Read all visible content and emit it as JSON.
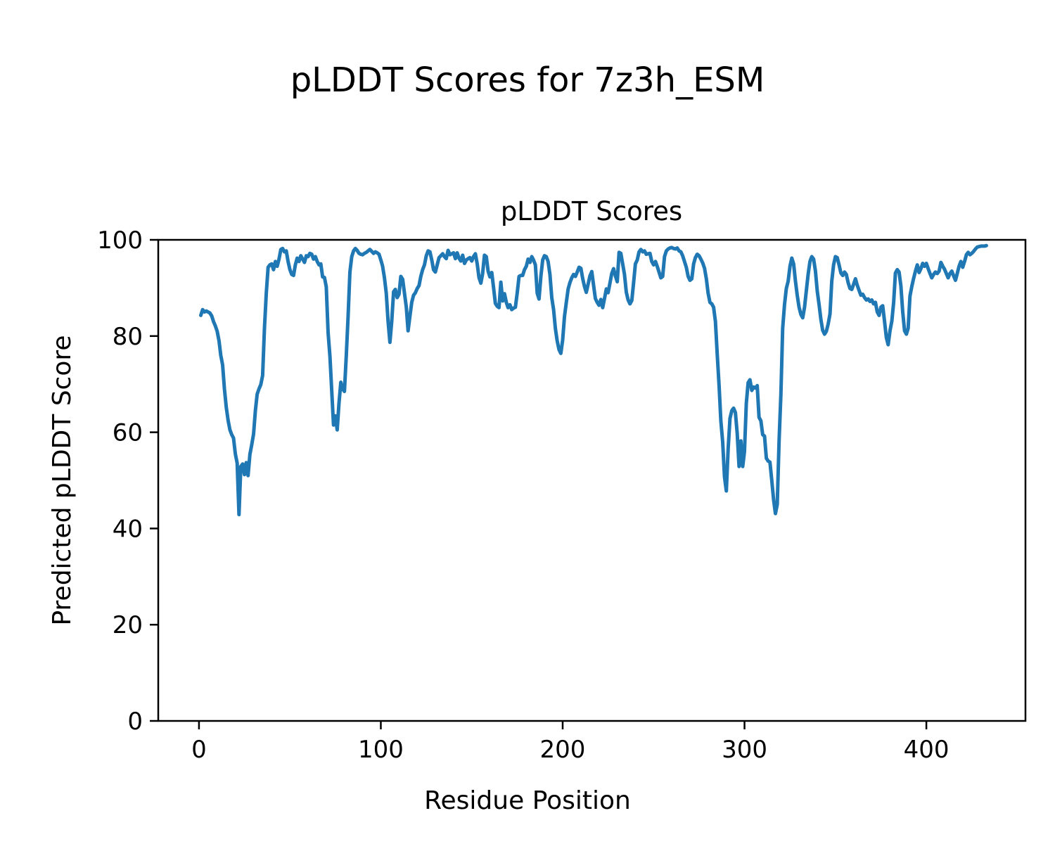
{
  "figure": {
    "background": "#ffffff",
    "suptitle": "pLDDT Scores for 7z3h_ESM"
  },
  "chart_data": {
    "type": "line",
    "title": "pLDDT Scores",
    "suptitle": "pLDDT Scores for 7z3h_ESM",
    "xlabel": "Residue Position",
    "ylabel": "Predicted pLDDT Score",
    "xlim": [
      -22.4,
      454.5
    ],
    "ylim": [
      0,
      100
    ],
    "xticks": [
      0,
      100,
      200,
      300,
      400
    ],
    "yticks": [
      0,
      20,
      40,
      60,
      80,
      100
    ],
    "grid": false,
    "legend": "none",
    "line_color": "#1f77b4",
    "line_width": 5,
    "axis_color": "#000000",
    "series": [
      {
        "name": "pLDDT",
        "x_start": 1,
        "x_step": 1,
        "values": [
          84.3,
          85.5,
          85,
          85.2,
          85,
          84.8,
          84.2,
          83,
          82.1,
          81,
          79,
          76,
          74,
          69,
          65.2,
          62.5,
          60.5,
          59.5,
          58.8,
          55.5,
          53.6,
          42.9,
          52.9,
          53.4,
          51.2,
          53.7,
          51,
          55.4,
          57.4,
          59.6,
          64.5,
          67.9,
          69,
          69.9,
          71.8,
          81.6,
          88.9,
          94.3,
          94.8,
          95,
          93.8,
          95.5,
          94.5,
          96,
          98,
          98.2,
          97.5,
          97.7,
          95.5,
          93.8,
          92.8,
          92.6,
          94.8,
          96.2,
          95.5,
          96.7,
          96,
          95.3,
          96.7,
          96.5,
          97.2,
          97,
          96,
          96.5,
          95.5,
          94.8,
          95,
          92.3,
          92.2,
          90.2,
          80.7,
          75.8,
          68.5,
          61.5,
          63.4,
          60.5,
          66.1,
          70.4,
          69,
          68.5,
          75.8,
          84,
          93.3,
          96.5,
          97.7,
          98.2,
          97.8,
          97.2,
          97,
          96.9,
          97.2,
          97.4,
          97.7,
          98,
          97.6,
          97.2,
          97.5,
          97.3,
          97,
          95.8,
          94.5,
          92.1,
          88.9,
          83,
          78.7,
          83.1,
          89.2,
          89.7,
          88,
          88.7,
          92.4,
          91.8,
          88.9,
          86,
          81.1,
          84.1,
          87,
          88.5,
          89,
          89.9,
          90.5,
          92.4,
          93.8,
          94.8,
          96.7,
          97.7,
          97.5,
          95.8,
          93.8,
          93.3,
          94.8,
          96.3,
          96.7,
          97.1,
          96.5,
          96.1,
          97.8,
          96.9,
          97.1,
          97.3,
          96.1,
          97.3,
          96.2,
          95.6,
          96.8,
          95.1,
          95.8,
          96.1,
          96.3,
          95.6,
          96.5,
          97.1,
          95,
          92.1,
          91,
          93,
          96.8,
          96.5,
          93.5,
          92.3,
          93.2,
          90,
          86.8,
          86.2,
          85.9,
          91.2,
          87.3,
          88.8,
          87,
          85.9,
          86.5,
          85.5,
          85.8,
          86,
          89,
          92.4,
          92.6,
          92.6,
          93.8,
          94.5,
          96,
          95.3,
          96.5,
          95.8,
          94.8,
          88.9,
          87.7,
          92.4,
          95.8,
          96.7,
          96.5,
          95.5,
          92.8,
          88,
          85.5,
          81.5,
          79,
          77.2,
          76.4,
          79.2,
          84.1,
          87,
          89.8,
          91.1,
          92.1,
          92.8,
          92.4,
          93.3,
          94.3,
          94.1,
          92,
          90.3,
          89.1,
          90.8,
          92.5,
          93.4,
          90.5,
          87.8,
          87,
          86.4,
          87.6,
          85.9,
          87.8,
          89.8,
          89,
          91,
          93,
          94,
          92.5,
          91.3,
          97.4,
          97.2,
          95,
          92.8,
          89.1,
          87.5,
          86.7,
          87.4,
          91,
          95,
          95.8,
          97.5,
          98,
          97.5,
          97.7,
          97,
          97.1,
          97.2,
          95.5,
          94.8,
          95.5,
          94.5,
          93.3,
          92.1,
          92.4,
          96.5,
          97.7,
          98.1,
          98.3,
          98.4,
          98.2,
          98.1,
          98.3,
          97.7,
          97.5,
          96.7,
          95.5,
          94.3,
          92.4,
          91.6,
          91.9,
          95,
          96.3,
          97,
          96.7,
          96,
          95.2,
          94.1,
          91.9,
          88.9,
          87,
          86.7,
          86,
          83,
          76.1,
          69.7,
          62.4,
          58,
          50.7,
          47.8,
          56.6,
          62.9,
          64.5,
          65,
          64.1,
          59.7,
          52.9,
          58.2,
          52.9,
          56,
          66,
          70.3,
          70.9,
          68.7,
          69.4,
          69.2,
          69.7,
          63.1,
          62.4,
          59.5,
          59.2,
          54.6,
          54,
          53.8,
          50,
          46,
          43.1,
          45,
          58.2,
          68,
          81.6,
          86.5,
          89.9,
          91.4,
          94.5,
          96.2,
          95,
          91.5,
          88.5,
          86,
          84.5,
          83.8,
          86,
          89.5,
          92.8,
          95.5,
          96.5,
          96,
          93.5,
          89.3,
          86.5,
          83.5,
          81.2,
          80.4,
          81,
          82.5,
          84.6,
          91.4,
          94.8,
          96.5,
          96.3,
          94.8,
          93.1,
          92.6,
          93.3,
          92.8,
          91.1,
          89.9,
          89.7,
          90.8,
          91.9,
          90.6,
          89.5,
          88.5,
          88.7,
          88,
          87.5,
          87.7,
          87.2,
          87.5,
          86.7,
          87,
          85,
          84.3,
          86,
          86.3,
          83.1,
          79.7,
          78.2,
          81.1,
          83.1,
          87,
          93.1,
          93.8,
          93.3,
          90.4,
          85,
          81.1,
          80.4,
          81.6,
          88.3,
          90.3,
          92,
          93.5,
          94.8,
          93.2,
          94,
          95.1,
          94.5,
          95.1,
          94,
          93,
          92.1,
          92.8,
          93.3,
          93,
          93.5,
          95.3,
          94.5,
          93.9,
          93,
          92.1,
          93,
          93.5,
          92.5,
          91.6,
          93,
          94.5,
          95.5,
          94.3,
          95.5,
          96.9,
          97.4,
          96.9,
          97.2,
          97.6,
          98.1,
          98.5,
          98.6,
          98.7,
          98.7,
          98.7,
          98.8
        ]
      }
    ]
  }
}
